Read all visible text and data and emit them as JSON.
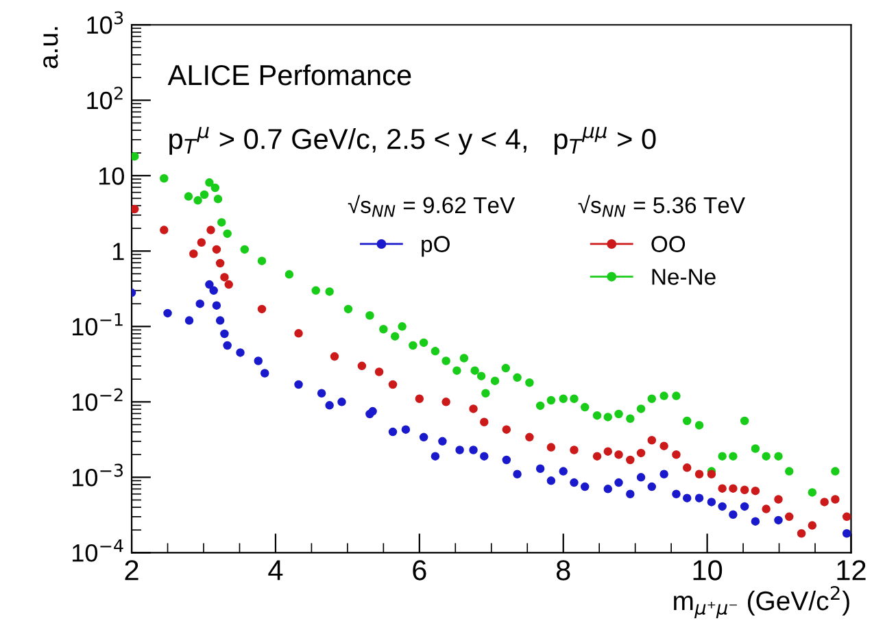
{
  "chart_data": {
    "type": "scatter",
    "xlabel": "m$_{μ⁺μ⁻}$ (GeV/c$^{2}$)",
    "ylabel": "a.u.",
    "annotations": [
      "ALICE Perfomance",
      "p$_{T}$$^{μ}$ > 0.7 GeV/c, 2.5 < y < 4,   p$_{T}$$^{μμ}$ > 0",
      "√s$_{NN}$ = 9.62 TeV",
      "√s$_{NN}$ = 5.36 TeV"
    ],
    "log": "y",
    "xlim": [
      2,
      12
    ],
    "xticks": [
      2,
      4,
      6,
      8,
      10,
      12
    ],
    "ylim": [
      0.0001,
      1000
    ],
    "yticks": [
      {
        "value": 0.0001,
        "label": "10$^{−4}$"
      },
      {
        "value": 0.001,
        "label": "10$^{−3}$"
      },
      {
        "value": 0.01,
        "label": "10$^{−2}$"
      },
      {
        "value": 0.1,
        "label": "10$^{−1}$"
      },
      1,
      10,
      {
        "value": 100,
        "label": "10$^{2}$"
      },
      {
        "value": 1000,
        "label": "10$^{3}$"
      }
    ],
    "marker": "circle",
    "legend": "top right",
    "grid": false,
    "series": [
      {
        "name": "pO",
        "color": "#1a1acc",
        "x": [
          2.0,
          2.5,
          2.8,
          2.95,
          3.08,
          3.14,
          3.18,
          3.23,
          3.29,
          3.33,
          3.51,
          3.76,
          3.85,
          4.32,
          4.64,
          4.75,
          4.92,
          5.31,
          5.35,
          5.63,
          5.81,
          6.06,
          6.22,
          6.32,
          6.56,
          6.75,
          6.9,
          7.21,
          7.36,
          7.68,
          7.83,
          8.0,
          8.15,
          8.3,
          8.62,
          8.77,
          8.93,
          9.08,
          9.23,
          9.4,
          9.57,
          9.72,
          9.89,
          10.06,
          10.21,
          10.36,
          10.52,
          10.67,
          10.99,
          11.94
        ],
        "values": [
          0.28,
          0.15,
          0.12,
          0.2,
          0.36,
          0.3,
          0.19,
          0.12,
          0.08,
          0.056,
          0.045,
          0.035,
          0.024,
          0.017,
          0.013,
          0.009,
          0.01,
          0.0069,
          0.0075,
          0.004,
          0.0043,
          0.0034,
          0.0019,
          0.003,
          0.0023,
          0.0023,
          0.0019,
          0.0017,
          0.0011,
          0.0013,
          0.0009,
          0.0012,
          0.00085,
          0.00075,
          0.0007,
          0.00085,
          0.0006,
          0.001,
          0.00075,
          0.0011,
          0.0006,
          0.00053,
          0.00053,
          0.00047,
          0.00041,
          0.00032,
          0.00041,
          0.00026,
          0.00027,
          0.00018
        ]
      },
      {
        "name": "OO",
        "color": "#cc1a1a",
        "x": [
          2.04,
          2.45,
          2.86,
          2.97,
          3.1,
          3.18,
          3.23,
          3.29,
          3.35,
          3.81,
          4.32,
          4.82,
          5.2,
          5.44,
          5.63,
          6.0,
          6.37,
          6.75,
          6.9,
          7.21,
          7.53,
          7.83,
          8.15,
          8.47,
          8.62,
          8.77,
          8.93,
          9.08,
          9.23,
          9.4,
          9.57,
          9.72,
          9.89,
          10.06,
          10.21,
          10.36,
          10.52,
          10.67,
          10.82,
          10.99,
          11.14,
          11.31,
          11.46,
          11.63,
          11.78,
          11.94
        ],
        "values": [
          3.6,
          1.9,
          0.92,
          1.3,
          1.9,
          1.05,
          0.69,
          0.45,
          0.36,
          0.17,
          0.081,
          0.04,
          0.03,
          0.025,
          0.017,
          0.011,
          0.01,
          0.0081,
          0.0054,
          0.0043,
          0.0034,
          0.0025,
          0.0023,
          0.0019,
          0.0022,
          0.002,
          0.0017,
          0.0021,
          0.0031,
          0.0026,
          0.002,
          0.00134,
          0.0011,
          0.0011,
          0.00071,
          0.00071,
          0.00068,
          0.00066,
          0.00038,
          0.00051,
          0.0003,
          0.00018,
          0.00023,
          0.00047,
          0.00051,
          0.0003
        ]
      },
      {
        "name": "Ne-Ne",
        "color": "#1acc1a",
        "x": [
          2.04,
          2.45,
          2.79,
          2.92,
          3.01,
          3.08,
          3.16,
          3.2,
          3.25,
          3.33,
          3.57,
          3.81,
          4.19,
          4.56,
          4.75,
          5.01,
          5.31,
          5.5,
          5.66,
          5.76,
          5.91,
          6.06,
          6.22,
          6.37,
          6.52,
          6.62,
          6.77,
          6.86,
          6.92,
          7.05,
          7.2,
          7.36,
          7.53,
          7.68,
          7.83,
          8.0,
          8.15,
          8.3,
          8.47,
          8.62,
          8.77,
          8.93,
          9.08,
          9.23,
          9.4,
          9.57,
          9.72,
          9.89,
          10.06,
          10.21,
          10.36,
          10.52,
          10.67,
          10.82,
          10.99,
          11.14,
          11.46,
          11.78
        ],
        "values": [
          18,
          9.2,
          5.3,
          4.7,
          5.6,
          8.1,
          6.9,
          4.9,
          2.4,
          1.7,
          1.05,
          0.74,
          0.49,
          0.3,
          0.29,
          0.17,
          0.14,
          0.092,
          0.074,
          0.1,
          0.056,
          0.061,
          0.047,
          0.035,
          0.026,
          0.038,
          0.026,
          0.022,
          0.013,
          0.019,
          0.028,
          0.021,
          0.018,
          0.0089,
          0.0105,
          0.011,
          0.011,
          0.0085,
          0.0066,
          0.0063,
          0.0069,
          0.006,
          0.0081,
          0.011,
          0.012,
          0.012,
          0.0056,
          0.0049,
          0.0012,
          0.0019,
          0.0019,
          0.0056,
          0.0024,
          0.0019,
          0.0019,
          0.0012,
          0.00063,
          0.0012
        ]
      }
    ]
  }
}
